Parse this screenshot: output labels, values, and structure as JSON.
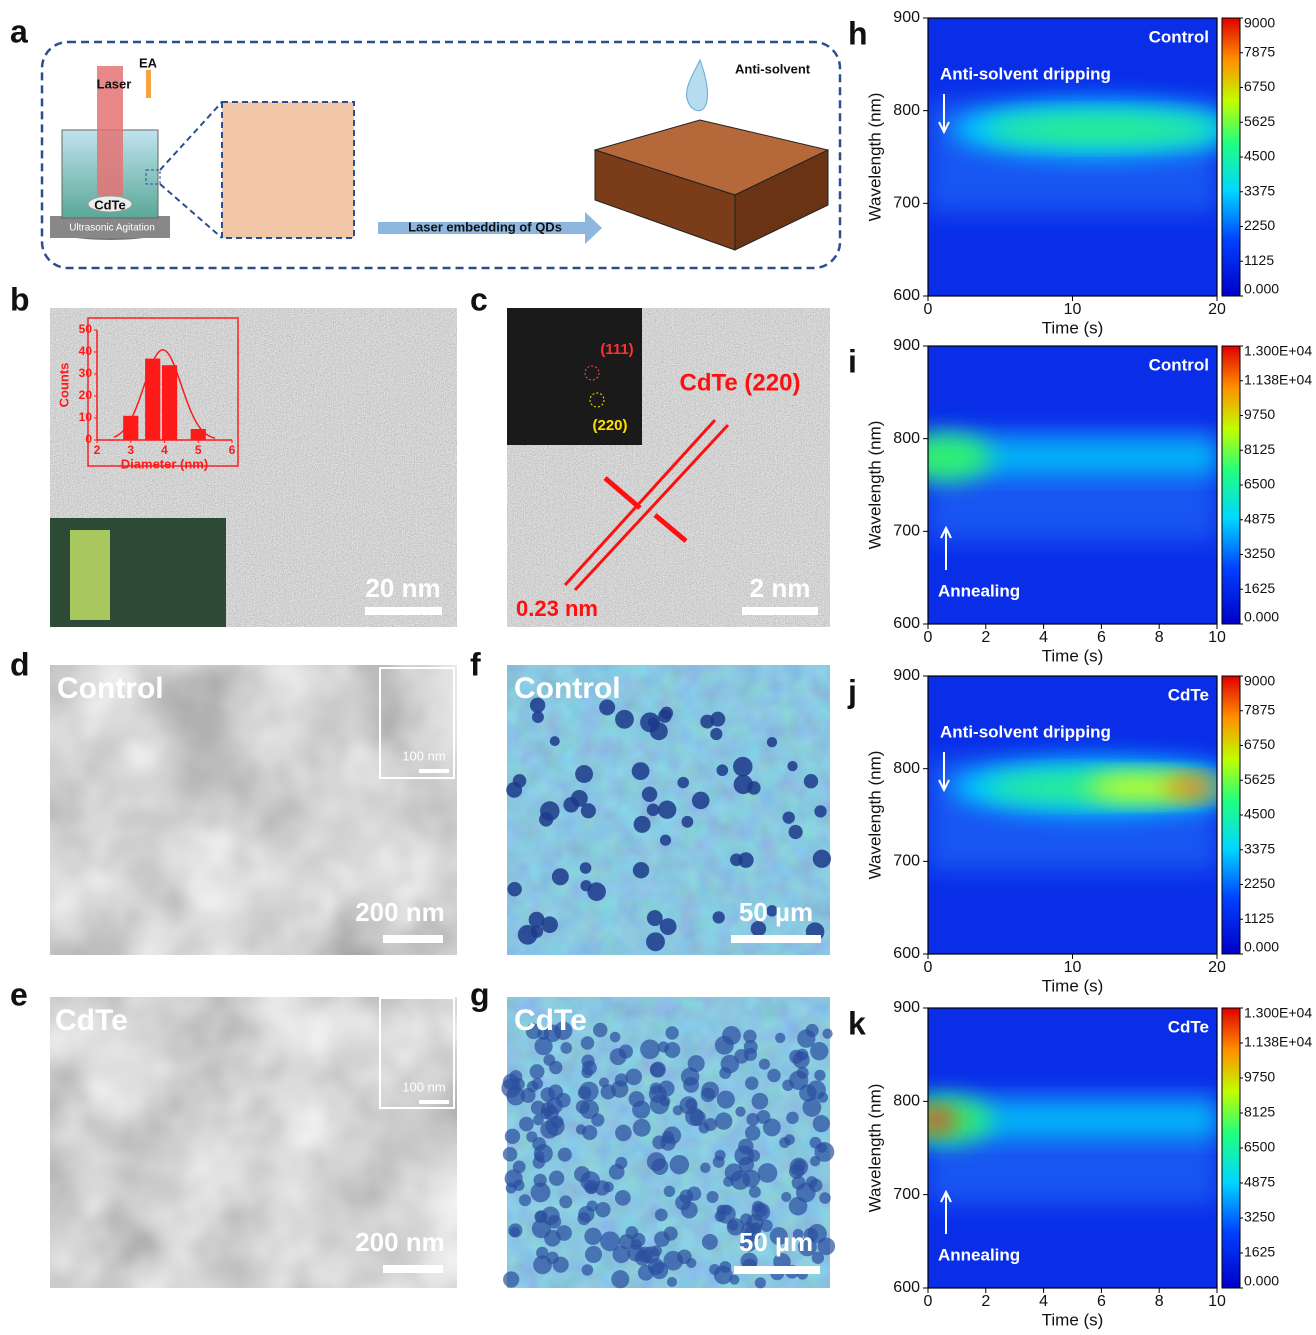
{
  "panel_a": {
    "letter": "a",
    "ea": "EA",
    "laser": "Laser",
    "cdte": "CdTe",
    "agitation": "Ultrasonic Agitation",
    "arrow": "Laser embedding of QDs",
    "antisolvent": "Anti-solvent"
  },
  "panel_b": {
    "letter": "b",
    "scale": "20 nm"
  },
  "panel_c": {
    "letter": "c",
    "fft_1": "(111)",
    "fft_2": "(220)",
    "plane": "CdTe (220)",
    "spacing": "0.23 nm",
    "scale": "2 nm"
  },
  "panel_d": {
    "letter": "d",
    "label": "Control",
    "inset_scale": "100 nm",
    "scale": "200 nm"
  },
  "panel_e": {
    "letter": "e",
    "label": "CdTe",
    "inset_scale": "100 nm",
    "scale": "200 nm"
  },
  "panel_f": {
    "letter": "f",
    "label": "Control",
    "scale": "50 µm"
  },
  "panel_g": {
    "letter": "g",
    "label": "CdTe",
    "scale": "50 µm"
  },
  "chart_data": [
    {
      "type": "bar",
      "xlabel": "Diameter (nm)",
      "ylabel": "Counts",
      "x": [
        3,
        3.65,
        4.15,
        5
      ],
      "values": [
        11,
        37,
        34,
        5
      ],
      "color": "#ff1a1a",
      "xlim": [
        2,
        6
      ],
      "xticks": [
        2,
        3,
        4,
        5,
        6
      ],
      "ylim": [
        0,
        50
      ],
      "yticks": [
        0,
        10,
        20,
        30,
        40,
        50
      ]
    },
    {
      "type": "heatmap",
      "letter": "h",
      "annotations": [
        "Control",
        "Anti-solvent dripping"
      ],
      "xlabel": "Time (s)",
      "ylabel": "Wavelength (nm)",
      "xlim": [
        0,
        20
      ],
      "xticks": [
        0,
        10,
        20
      ],
      "ylim": [
        600,
        900
      ],
      "yticks": [
        600,
        700,
        800,
        900
      ],
      "colorbar_lim": [
        0,
        9000
      ],
      "colorbar_ticks": [
        {
          "value": 0,
          "label": "0.000"
        },
        1125,
        2250,
        3375,
        4500,
        5625,
        6750,
        7875,
        9000
      ]
    },
    {
      "type": "heatmap",
      "letter": "i",
      "annotations": [
        "Control",
        "Annealing"
      ],
      "xlabel": "Time (s)",
      "ylabel": "Wavelength (nm)",
      "xlim": [
        0,
        10
      ],
      "xticks": [
        0,
        2,
        4,
        6,
        8,
        10
      ],
      "ylim": [
        600,
        900
      ],
      "yticks": [
        600,
        700,
        800,
        900
      ],
      "colorbar_lim": [
        0,
        13000
      ],
      "colorbar_ticks": [
        {
          "value": 0,
          "label": "0.000"
        },
        1625,
        3250,
        4875,
        6500,
        8125,
        9750,
        {
          "value": 11375,
          "label": "1.138E+04"
        },
        {
          "value": 13000,
          "label": "1.300E+04"
        }
      ]
    },
    {
      "type": "heatmap",
      "letter": "j",
      "annotations": [
        "CdTe",
        "Anti-solvent dripping"
      ],
      "xlabel": "Time (s)",
      "ylabel": "Wavelength (nm)",
      "xlim": [
        0,
        20
      ],
      "xticks": [
        0,
        10,
        20
      ],
      "ylim": [
        600,
        900
      ],
      "yticks": [
        600,
        700,
        800,
        900
      ],
      "colorbar_lim": [
        0,
        9000
      ],
      "colorbar_ticks": [
        {
          "value": 0,
          "label": "0.000"
        },
        1125,
        2250,
        3375,
        4500,
        5625,
        6750,
        7875,
        9000
      ]
    },
    {
      "type": "heatmap",
      "letter": "k",
      "annotations": [
        "CdTe",
        "Annealing"
      ],
      "xlabel": "Time (s)",
      "ylabel": "Wavelength (nm)",
      "xlim": [
        0,
        10
      ],
      "xticks": [
        0,
        2,
        4,
        6,
        8,
        10
      ],
      "ylim": [
        600,
        900
      ],
      "yticks": [
        600,
        700,
        800,
        900
      ],
      "colorbar_lim": [
        0,
        13000
      ],
      "colorbar_ticks": [
        {
          "value": 0,
          "label": "0.000"
        },
        1625,
        3250,
        4875,
        6500,
        8125,
        9750,
        {
          "value": 11375,
          "label": "1.138E+04"
        },
        {
          "value": 13000,
          "label": "1.300E+04"
        }
      ]
    }
  ]
}
